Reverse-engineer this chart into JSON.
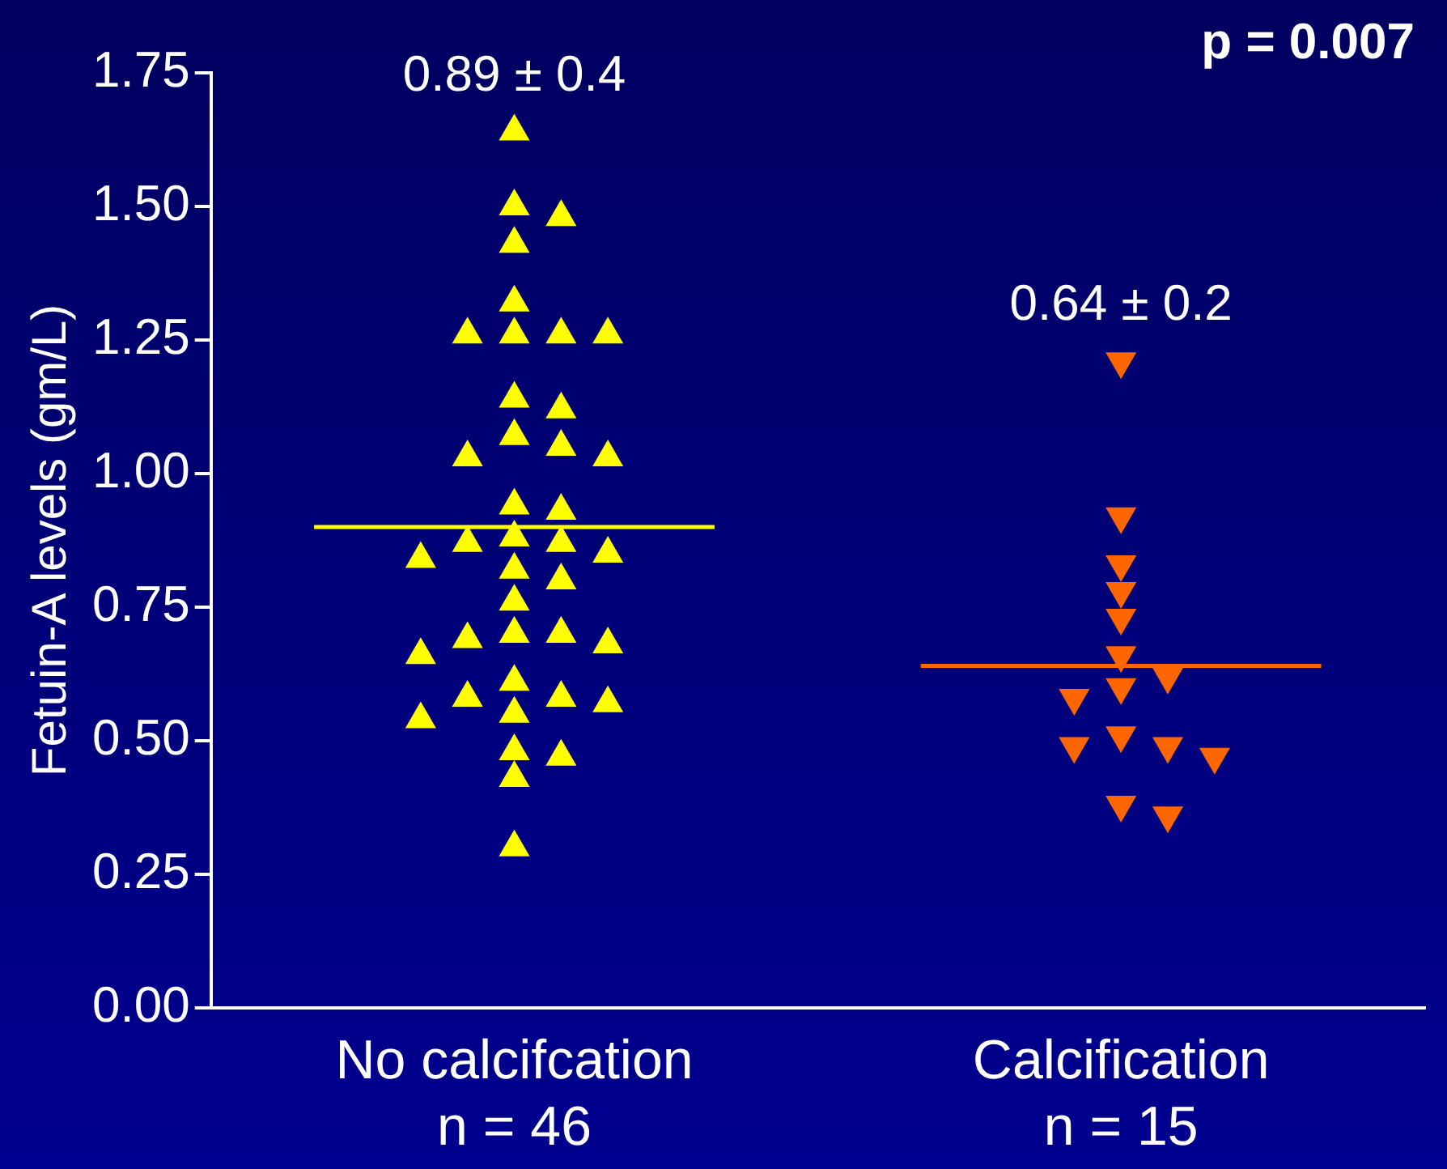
{
  "chart_data": {
    "type": "scatter",
    "ylabel": "Fetuin-A levels (gm/L)",
    "categories": [
      "No calcifcation\nn = 46",
      "Calcification\nn = 15"
    ],
    "ylim": [
      0,
      1.75
    ],
    "yticks": [
      {
        "value": 0,
        "label": "0.00"
      },
      {
        "value": 0.25,
        "label": "0.25"
      },
      {
        "value": 0.5,
        "label": "0.50"
      },
      {
        "value": 0.75,
        "label": "0.75"
      },
      {
        "value": 1,
        "label": "1.00"
      },
      {
        "value": 1.25,
        "label": "1.25"
      },
      {
        "value": 1.5,
        "label": "1.50"
      },
      {
        "value": 1.75,
        "label": "1.75"
      }
    ],
    "grid": false,
    "legend": false,
    "series": [
      {
        "marker": "triangle",
        "color": "#ffff00",
        "x": [
          "No calcifcation\nn = 46",
          "No calcifcation\nn = 46",
          "No calcifcation\nn = 46",
          "No calcifcation\nn = 46",
          "No calcifcation\nn = 46",
          "No calcifcation\nn = 46",
          "No calcifcation\nn = 46",
          "No calcifcation\nn = 46",
          "No calcifcation\nn = 46",
          "No calcifcation\nn = 46",
          "No calcifcation\nn = 46",
          "No calcifcation\nn = 46",
          "No calcifcation\nn = 46",
          "No calcifcation\nn = 46",
          "No calcifcation\nn = 46",
          "No calcifcation\nn = 46",
          "No calcifcation\nn = 46",
          "No calcifcation\nn = 46",
          "No calcifcation\nn = 46",
          "No calcifcation\nn = 46",
          "No calcifcation\nn = 46",
          "No calcifcation\nn = 46",
          "No calcifcation\nn = 46",
          "No calcifcation\nn = 46",
          "No calcifcation\nn = 46",
          "No calcifcation\nn = 46",
          "No calcifcation\nn = 46",
          "No calcifcation\nn = 46",
          "No calcifcation\nn = 46",
          "No calcifcation\nn = 46",
          "No calcifcation\nn = 46",
          "No calcifcation\nn = 46",
          "No calcifcation\nn = 46",
          "No calcifcation\nn = 46",
          "No calcifcation\nn = 46",
          "No calcifcation\nn = 46",
          "No calcifcation\nn = 46",
          "No calcifcation\nn = 46",
          "No calcifcation\nn = 46",
          "No calcifcation\nn = 46"
        ],
        "values": [
          1.64,
          1.5,
          1.48,
          1.43,
          1.32,
          1.26,
          1.26,
          1.26,
          1.26,
          1.14,
          1.12,
          1.07,
          1.05,
          1.03,
          1.03,
          0.94,
          0.93,
          0.88,
          0.87,
          0.87,
          0.85,
          0.84,
          0.82,
          0.8,
          0.76,
          0.7,
          0.7,
          0.69,
          0.68,
          0.66,
          0.61,
          0.58,
          0.58,
          0.57,
          0.55,
          0.54,
          0.48,
          0.47,
          0.43,
          0.3
        ]
      },
      {
        "marker": "triangle-down",
        "color": "#ff6600",
        "x": [
          "Calcification\nn = 15",
          "Calcification\nn = 15",
          "Calcification\nn = 15",
          "Calcification\nn = 15",
          "Calcification\nn = 15",
          "Calcification\nn = 15",
          "Calcification\nn = 15",
          "Calcification\nn = 15",
          "Calcification\nn = 15",
          "Calcification\nn = 15",
          "Calcification\nn = 15",
          "Calcification\nn = 15",
          "Calcification\nn = 15",
          "Calcification\nn = 15",
          "Calcification\nn = 15"
        ],
        "values": [
          1.21,
          0.92,
          0.83,
          0.78,
          0.73,
          0.66,
          0.62,
          0.6,
          0.58,
          0.51,
          0.49,
          0.49,
          0.47,
          0.38,
          0.36
        ]
      }
    ],
    "ref_lines": [
      {
        "axis": "y",
        "value": 0.9,
        "color": "#ffff00"
      },
      {
        "axis": "y",
        "value": 0.64,
        "color": "#ff6600"
      }
    ],
    "annotations": [
      "0.89 ± 0.4",
      "0.64 ± 0.2",
      "p = 0.007"
    ]
  }
}
